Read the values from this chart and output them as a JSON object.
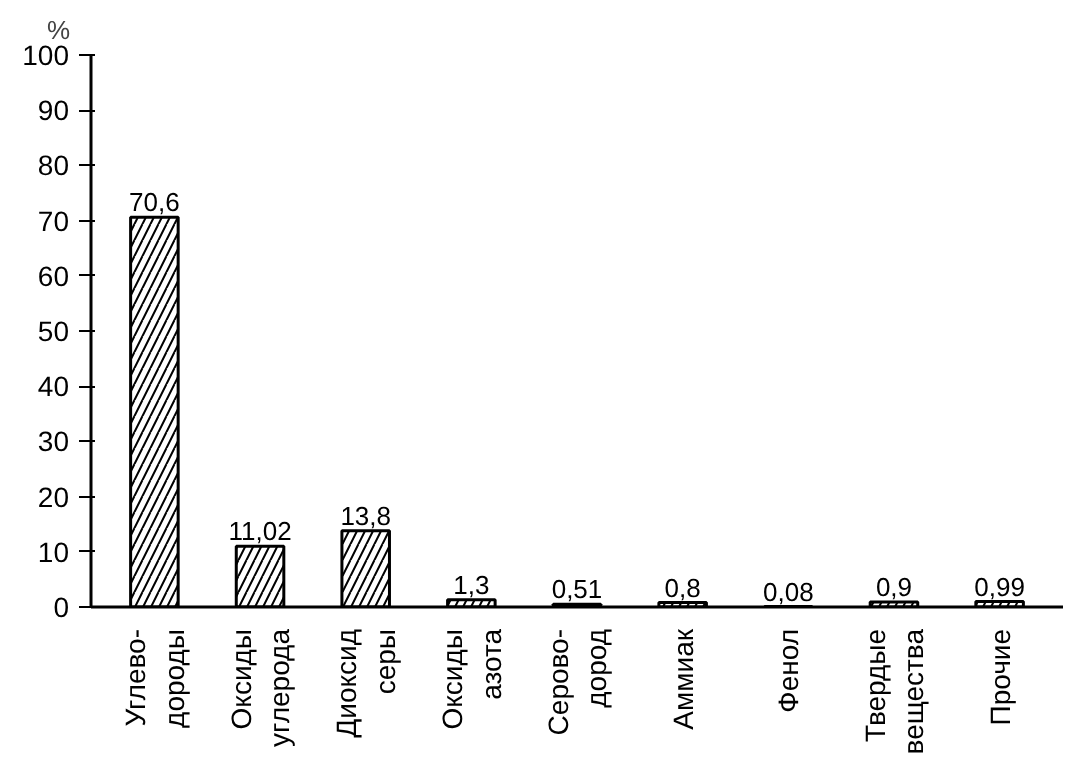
{
  "chart_data": {
    "type": "bar",
    "ylabel": "%",
    "categories": [
      "Углево-\nдороды",
      "Оксиды\nуглерода",
      "Диоксид\nсеры",
      "Оксиды\nазота",
      "Серово-\nдород",
      "Аммиак",
      "Фенол",
      "Твердые\nвещества",
      "Прочие"
    ],
    "values": [
      70.6,
      11.02,
      13.8,
      1.3,
      0.51,
      0.8,
      0.08,
      0.9,
      0.99
    ],
    "value_labels": [
      "70,6",
      "11,02",
      "13,8",
      "1,3",
      "0,51",
      "0,8",
      "0,08",
      "0,9",
      "0,99"
    ],
    "color": "#000000",
    "ylim": [
      0,
      100
    ],
    "yticks": [
      0,
      10,
      20,
      30,
      40,
      50,
      60,
      70,
      80,
      90,
      100
    ],
    "grid": false
  }
}
